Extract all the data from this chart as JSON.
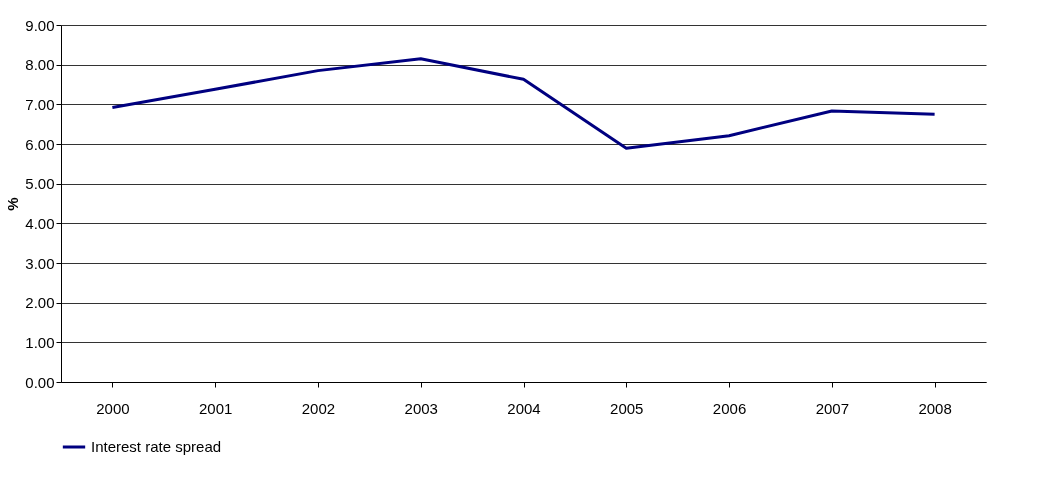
{
  "chart_data": {
    "type": "line",
    "ylabel": "%",
    "categories": [
      "2000",
      "2001",
      "2002",
      "2003",
      "2004",
      "2005",
      "2006",
      "2007",
      "2008"
    ],
    "series": [
      {
        "name": "Interest rate spread",
        "color": "#000080",
        "values": [
          6.92,
          7.38,
          7.85,
          8.15,
          7.63,
          5.89,
          6.21,
          6.83,
          6.75
        ]
      }
    ],
    "ylim": [
      0,
      9
    ],
    "yticks": [
      {
        "value": 0,
        "label": "0.00"
      },
      {
        "value": 1,
        "label": "1.00"
      },
      {
        "value": 2,
        "label": "2.00"
      },
      {
        "value": 3,
        "label": "3.00"
      },
      {
        "value": 4,
        "label": "4.00"
      },
      {
        "value": 5,
        "label": "5.00"
      },
      {
        "value": 6,
        "label": "6.00"
      },
      {
        "value": 7,
        "label": "7.00"
      },
      {
        "value": 8,
        "label": "8.00"
      },
      {
        "value": 9,
        "label": "9.00"
      }
    ],
    "grid": "y",
    "legend": "bottom",
    "marker": "none",
    "line_style": "solid"
  }
}
